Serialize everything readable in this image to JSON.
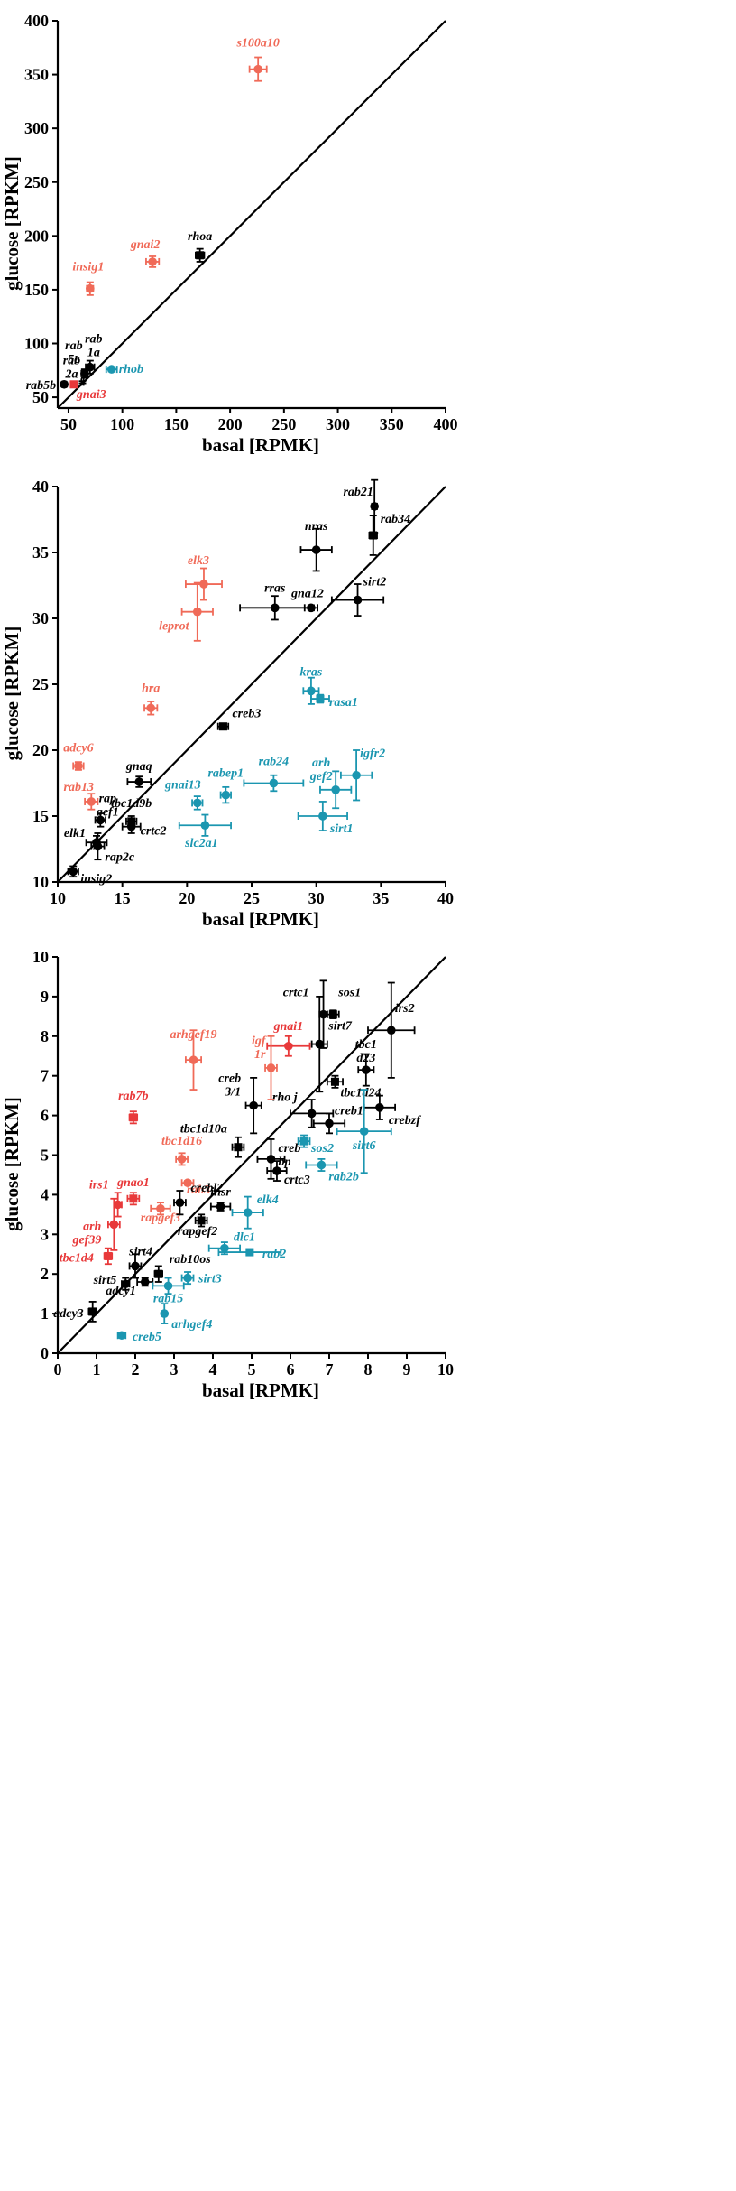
{
  "colors": {
    "black": "#000000",
    "red": "#e8393a",
    "orange": "#f06a58",
    "teal": "#1b96b0"
  },
  "chart_data": [
    {
      "type": "scatter",
      "xlabel": "basal [RPMK]",
      "ylabel": "glucose [RPKM]",
      "xlim": [
        40,
        400
      ],
      "ylim": [
        40,
        400
      ],
      "xticks": [
        "50",
        "100",
        "150",
        "200",
        "250",
        "300",
        "350",
        "400"
      ],
      "yticks": [
        "50",
        "100",
        "150",
        "200",
        "250",
        "300",
        "350",
        "400"
      ],
      "identity_line": true,
      "points": [
        {
          "x": 226,
          "y": 355,
          "xerr": 8,
          "yerr": 11,
          "color": "orange",
          "marker": "circle",
          "label": "s100a10"
        },
        {
          "x": 128,
          "y": 176,
          "xerr": 6,
          "yerr": 5,
          "color": "orange",
          "marker": "circle",
          "label": "gnai2"
        },
        {
          "x": 172,
          "y": 182,
          "xerr": 4,
          "yerr": 6,
          "color": "black",
          "marker": "square",
          "label": "rhoa"
        },
        {
          "x": 70,
          "y": 151,
          "xerr": 3,
          "yerr": 6,
          "color": "orange",
          "marker": "circle",
          "label": "insig1"
        },
        {
          "x": 70,
          "y": 78,
          "xerr": 4,
          "yerr": 6,
          "color": "black",
          "marker": "circle",
          "label": "rab 1a"
        },
        {
          "x": 65,
          "y": 72,
          "xerr": 3,
          "yerr": 4,
          "color": "black",
          "marker": "circle",
          "label": "rab 5c"
        },
        {
          "x": 90,
          "y": 76,
          "xerr": 5,
          "yerr": 2,
          "color": "teal",
          "marker": "circle",
          "label": "rhob"
        },
        {
          "x": 55,
          "y": 62,
          "xerr": 2,
          "yerr": 2,
          "color": "red",
          "marker": "square",
          "label": "gnai3"
        },
        {
          "x": 46,
          "y": 62,
          "xerr": 2,
          "yerr": 2,
          "color": "black",
          "marker": "circle",
          "label": "rab5b"
        },
        {
          "x": 63,
          "y": 64,
          "xerr": 1,
          "yerr": 1,
          "color": "black",
          "marker": "none",
          "label": "rab 2a"
        }
      ]
    },
    {
      "type": "scatter",
      "xlabel": "basal [RPMK]",
      "ylabel": "glucose [RPKM]",
      "xlim": [
        10,
        40
      ],
      "ylim": [
        10,
        40
      ],
      "xticks": [
        "10",
        "15",
        "20",
        "25",
        "30",
        "35",
        "40"
      ],
      "yticks": [
        "10",
        "15",
        "20",
        "25",
        "30",
        "35",
        "40"
      ],
      "identity_line": true,
      "points": [
        {
          "x": 34.5,
          "y": 38.5,
          "xerr": 0.2,
          "yerr": 2.0,
          "color": "black",
          "marker": "circle",
          "label": "rab21"
        },
        {
          "x": 34.4,
          "y": 36.3,
          "xerr": 0.3,
          "yerr": 1.5,
          "color": "black",
          "marker": "square",
          "label": "rab34"
        },
        {
          "x": 30.0,
          "y": 35.2,
          "xerr": 1.2,
          "yerr": 1.6,
          "color": "black",
          "marker": "circle",
          "label": "nras"
        },
        {
          "x": 26.8,
          "y": 30.8,
          "xerr": 2.7,
          "yerr": 0.9,
          "color": "black",
          "marker": "circle",
          "label": "rras"
        },
        {
          "x": 29.6,
          "y": 30.8,
          "xerr": 0.5,
          "yerr": 0.2,
          "color": "black",
          "marker": "circle",
          "label": "gna12"
        },
        {
          "x": 33.2,
          "y": 31.4,
          "xerr": 2.0,
          "yerr": 1.2,
          "color": "black",
          "marker": "circle",
          "label": "sirt2"
        },
        {
          "x": 21.3,
          "y": 32.6,
          "xerr": 1.4,
          "yerr": 1.2,
          "color": "orange",
          "marker": "circle",
          "label": "elk3"
        },
        {
          "x": 20.8,
          "y": 30.5,
          "xerr": 1.2,
          "yerr": 2.2,
          "color": "orange",
          "marker": "circle",
          "label": "leprot"
        },
        {
          "x": 17.2,
          "y": 23.2,
          "xerr": 0.5,
          "yerr": 0.5,
          "color": "orange",
          "marker": "circle",
          "label": "hra"
        },
        {
          "x": 22.8,
          "y": 21.8,
          "xerr": 0.4,
          "yerr": 0.2,
          "color": "black",
          "marker": "square",
          "label": "creb3"
        },
        {
          "x": 29.6,
          "y": 24.5,
          "xerr": 0.6,
          "yerr": 1.0,
          "color": "teal",
          "marker": "circle",
          "label": "kras"
        },
        {
          "x": 30.3,
          "y": 23.9,
          "xerr": 0.7,
          "yerr": 0.3,
          "color": "teal",
          "marker": "square",
          "label": "rasa1"
        },
        {
          "x": 11.6,
          "y": 18.8,
          "xerr": 0.4,
          "yerr": 0.3,
          "color": "orange",
          "marker": "circle",
          "label": "adcy6"
        },
        {
          "x": 16.3,
          "y": 17.6,
          "xerr": 0.9,
          "yerr": 0.4,
          "color": "black",
          "marker": "circle",
          "label": "gnaq"
        },
        {
          "x": 12.6,
          "y": 16.1,
          "xerr": 0.5,
          "yerr": 0.6,
          "color": "orange",
          "marker": "circle",
          "label": "rab13"
        },
        {
          "x": 26.7,
          "y": 17.5,
          "xerr": 2.3,
          "yerr": 0.6,
          "color": "teal",
          "marker": "circle",
          "label": "rab24"
        },
        {
          "x": 33.1,
          "y": 18.1,
          "xerr": 1.2,
          "yerr": 1.9,
          "color": "teal",
          "marker": "circle",
          "label": "igfr2"
        },
        {
          "x": 31.5,
          "y": 17.0,
          "xerr": 1.2,
          "yerr": 1.4,
          "color": "teal",
          "marker": "circle",
          "label": "arh gef2"
        },
        {
          "x": 23.0,
          "y": 16.6,
          "xerr": 0.4,
          "yerr": 0.6,
          "color": "teal",
          "marker": "circle",
          "label": "rabep1"
        },
        {
          "x": 20.8,
          "y": 16.0,
          "xerr": 0.4,
          "yerr": 0.5,
          "color": "teal",
          "marker": "circle",
          "label": "gnai13"
        },
        {
          "x": 21.4,
          "y": 14.3,
          "xerr": 2.0,
          "yerr": 0.8,
          "color": "teal",
          "marker": "circle",
          "label": "slc2a1"
        },
        {
          "x": 30.5,
          "y": 15.0,
          "xerr": 1.9,
          "yerr": 1.1,
          "color": "teal",
          "marker": "circle",
          "label": "sirt1"
        },
        {
          "x": 13.3,
          "y": 14.7,
          "xerr": 0.4,
          "yerr": 0.5,
          "color": "black",
          "marker": "circle",
          "label": "rap gef1"
        },
        {
          "x": 15.7,
          "y": 14.6,
          "xerr": 0.4,
          "yerr": 0.4,
          "color": "black",
          "marker": "square",
          "label": "tbc1d9b"
        },
        {
          "x": 15.7,
          "y": 14.2,
          "xerr": 0.7,
          "yerr": 0.5,
          "color": "black",
          "marker": "circle",
          "label": "crtc2"
        },
        {
          "x": 13.0,
          "y": 13.0,
          "xerr": 0.8,
          "yerr": 0.5,
          "color": "black",
          "marker": "circle",
          "label": "elk1"
        },
        {
          "x": 13.1,
          "y": 12.7,
          "xerr": 0.5,
          "yerr": 1.0,
          "color": "black",
          "marker": "circle",
          "label": "rap2c"
        },
        {
          "x": 11.2,
          "y": 10.8,
          "xerr": 0.4,
          "yerr": 0.4,
          "color": "black",
          "marker": "circle",
          "label": "insig2"
        }
      ]
    },
    {
      "type": "scatter",
      "xlabel": "basal [RPMK]",
      "ylabel": "glucose [RPKM]",
      "xlim": [
        0,
        10
      ],
      "ylim": [
        0,
        10
      ],
      "xticks": [
        "0",
        "1",
        "2",
        "3",
        "4",
        "5",
        "6",
        "7",
        "8",
        "9",
        "10"
      ],
      "yticks": [
        "0",
        "1",
        "2",
        "3",
        "4",
        "5",
        "6",
        "7",
        "8",
        "9",
        "10"
      ],
      "identity_line": true,
      "points": [
        {
          "x": 6.85,
          "y": 8.55,
          "xerr": 0.1,
          "yerr": 0.85,
          "color": "black",
          "marker": "circle",
          "label": "crtc1"
        },
        {
          "x": 7.1,
          "y": 8.55,
          "xerr": 0.15,
          "yerr": 0.1,
          "color": "black",
          "marker": "square",
          "label": "sos1"
        },
        {
          "x": 6.75,
          "y": 7.8,
          "xerr": 0.2,
          "yerr": 1.2,
          "color": "black",
          "marker": "circle",
          "label": "sirt7"
        },
        {
          "x": 8.6,
          "y": 8.15,
          "xerr": 0.6,
          "yerr": 1.2,
          "color": "black",
          "marker": "circle",
          "label": "irs2"
        },
        {
          "x": 7.95,
          "y": 7.15,
          "xerr": 0.2,
          "yerr": 0.4,
          "color": "black",
          "marker": "circle",
          "label": "tbc1 d23"
        },
        {
          "x": 7.15,
          "y": 6.85,
          "xerr": 0.2,
          "yerr": 0.15,
          "color": "black",
          "marker": "square",
          "label": "tbc1d24"
        },
        {
          "x": 8.3,
          "y": 6.2,
          "xerr": 0.4,
          "yerr": 0.3,
          "color": "black",
          "marker": "circle",
          "label": "crebzf"
        },
        {
          "x": 6.55,
          "y": 6.05,
          "xerr": 0.55,
          "yerr": 0.35,
          "color": "black",
          "marker": "circle",
          "label": "rho j"
        },
        {
          "x": 7.0,
          "y": 5.8,
          "xerr": 0.4,
          "yerr": 0.25,
          "color": "black",
          "marker": "circle",
          "label": "creb1"
        },
        {
          "x": 7.9,
          "y": 5.6,
          "xerr": 0.7,
          "yerr": 1.05,
          "color": "teal",
          "marker": "circle",
          "label": "sirt6"
        },
        {
          "x": 6.35,
          "y": 5.35,
          "xerr": 0.15,
          "yerr": 0.15,
          "color": "teal",
          "marker": "square",
          "label": "sos2"
        },
        {
          "x": 6.8,
          "y": 4.75,
          "xerr": 0.4,
          "yerr": 0.15,
          "color": "teal",
          "marker": "circle",
          "label": "rab2b"
        },
        {
          "x": 5.95,
          "y": 7.75,
          "xerr": 0.55,
          "yerr": 0.25,
          "color": "red",
          "marker": "circle",
          "label": "gnai1"
        },
        {
          "x": 5.5,
          "y": 7.2,
          "xerr": 0.15,
          "yerr": 0.8,
          "color": "orange",
          "marker": "circle",
          "label": "igf 1r"
        },
        {
          "x": 3.5,
          "y": 7.4,
          "xerr": 0.2,
          "yerr": 0.75,
          "color": "orange",
          "marker": "circle",
          "label": "arhgef19"
        },
        {
          "x": 5.05,
          "y": 6.25,
          "xerr": 0.2,
          "yerr": 0.7,
          "color": "black",
          "marker": "circle",
          "label": "creb 3/1"
        },
        {
          "x": 4.65,
          "y": 5.2,
          "xerr": 0.15,
          "yerr": 0.25,
          "color": "black",
          "marker": "square",
          "label": "tbc1d10a"
        },
        {
          "x": 5.5,
          "y": 4.9,
          "xerr": 0.35,
          "yerr": 0.5,
          "color": "black",
          "marker": "circle",
          "label": "creb bp"
        },
        {
          "x": 5.65,
          "y": 4.6,
          "xerr": 0.25,
          "yerr": 0.25,
          "color": "black",
          "marker": "circle",
          "label": "crtc3"
        },
        {
          "x": 1.95,
          "y": 5.95,
          "xerr": 0.1,
          "yerr": 0.15,
          "color": "red",
          "marker": "square",
          "label": "rab7b"
        },
        {
          "x": 3.2,
          "y": 4.9,
          "xerr": 0.15,
          "yerr": 0.15,
          "color": "orange",
          "marker": "circle",
          "label": "tbc1d16"
        },
        {
          "x": 3.35,
          "y": 4.3,
          "xerr": 0.15,
          "yerr": 0.05,
          "color": "orange",
          "marker": "circle",
          "label": "rab3"
        },
        {
          "x": 1.95,
          "y": 3.9,
          "xerr": 0.15,
          "yerr": 0.15,
          "color": "red",
          "marker": "square",
          "label": "gnao1"
        },
        {
          "x": 1.55,
          "y": 3.75,
          "xerr": 0.1,
          "yerr": 0.3,
          "color": "red",
          "marker": "circle",
          "label": "irs1"
        },
        {
          "x": 1.45,
          "y": 3.25,
          "xerr": 0.15,
          "yerr": 0.65,
          "color": "red",
          "marker": "circle",
          "label": "arh gef39"
        },
        {
          "x": 2.65,
          "y": 3.65,
          "xerr": 0.25,
          "yerr": 0.15,
          "color": "orange",
          "marker": "circle",
          "label": "rapgef3"
        },
        {
          "x": 3.15,
          "y": 3.8,
          "xerr": 0.15,
          "yerr": 0.3,
          "color": "black",
          "marker": "circle",
          "label": "crebl2"
        },
        {
          "x": 4.2,
          "y": 3.7,
          "xerr": 0.25,
          "yerr": 0.1,
          "color": "black",
          "marker": "circle",
          "label": "insr"
        },
        {
          "x": 4.9,
          "y": 3.55,
          "xerr": 0.4,
          "yerr": 0.4,
          "color": "teal",
          "marker": "circle",
          "label": "elk4"
        },
        {
          "x": 3.7,
          "y": 3.35,
          "xerr": 0.15,
          "yerr": 0.15,
          "color": "black",
          "marker": "square",
          "label": "rapgef2"
        },
        {
          "x": 1.3,
          "y": 2.45,
          "xerr": 0.1,
          "yerr": 0.2,
          "color": "red",
          "marker": "square",
          "label": "tbc1d4"
        },
        {
          "x": 2.0,
          "y": 2.2,
          "xerr": 0.15,
          "yerr": 0.3,
          "color": "black",
          "marker": "circle",
          "label": "sirt4"
        },
        {
          "x": 2.6,
          "y": 2.0,
          "xerr": 0.1,
          "yerr": 0.2,
          "color": "black",
          "marker": "square",
          "label": "rab10os"
        },
        {
          "x": 4.3,
          "y": 2.65,
          "xerr": 0.4,
          "yerr": 0.15,
          "color": "teal",
          "marker": "circle",
          "label": "dlc1"
        },
        {
          "x": 4.95,
          "y": 2.55,
          "xerr": 0.8,
          "yerr": 0.05,
          "color": "teal",
          "marker": "square",
          "label": "rab2"
        },
        {
          "x": 1.75,
          "y": 1.75,
          "xerr": 0.1,
          "yerr": 0.15,
          "color": "black",
          "marker": "circle",
          "label": "sirt5"
        },
        {
          "x": 2.25,
          "y": 1.8,
          "xerr": 0.2,
          "yerr": 0.1,
          "color": "black",
          "marker": "circle",
          "label": "adcy1"
        },
        {
          "x": 2.85,
          "y": 1.7,
          "xerr": 0.4,
          "yerr": 0.2,
          "color": "teal",
          "marker": "circle",
          "label": "rab15"
        },
        {
          "x": 3.35,
          "y": 1.9,
          "xerr": 0.15,
          "yerr": 0.15,
          "color": "teal",
          "marker": "circle",
          "label": "sirt3"
        },
        {
          "x": 2.75,
          "y": 1.0,
          "xerr": 0.05,
          "yerr": 0.25,
          "color": "teal",
          "marker": "circle",
          "label": "arhgef4"
        },
        {
          "x": 0.9,
          "y": 1.05,
          "xerr": 0.1,
          "yerr": 0.25,
          "color": "black",
          "marker": "square",
          "label": "adcy3"
        },
        {
          "x": 1.65,
          "y": 0.45,
          "xerr": 0.1,
          "yerr": 0.05,
          "color": "teal",
          "marker": "circle",
          "label": "creb5"
        }
      ]
    }
  ]
}
